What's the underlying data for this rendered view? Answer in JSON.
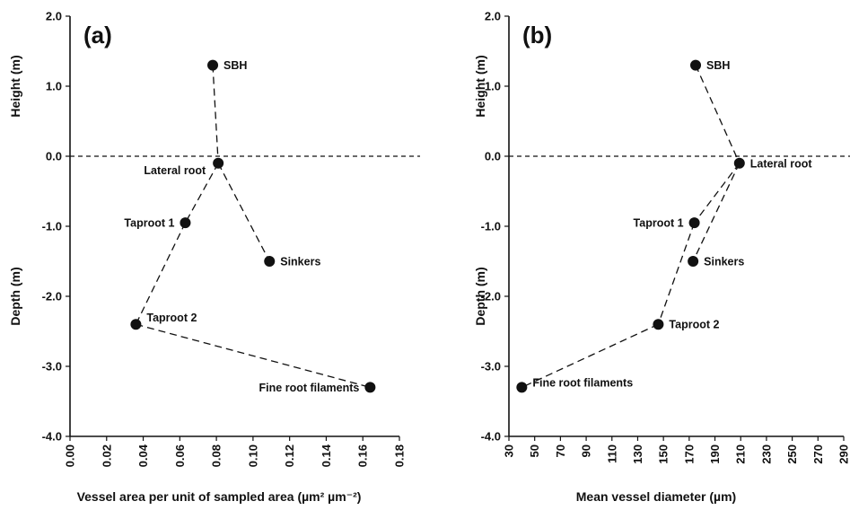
{
  "chart_data": [
    {
      "type": "scatter",
      "panel_label": "(a)",
      "xlabel": "Vessel area per unit of sampled area (µm² µm⁻²)",
      "ylabel_top": "Height (m)",
      "ylabel_bottom": "Depth (m)",
      "xlim": [
        0.0,
        0.18
      ],
      "ylim": [
        -4.0,
        2.0
      ],
      "xticks": [
        "0.00",
        "0.02",
        "0.04",
        "0.06",
        "0.08",
        "0.10",
        "0.12",
        "0.14",
        "0.16",
        "0.18"
      ],
      "yticks": [
        "2.0",
        "1.0",
        "0.0",
        "-1.0",
        "-2.0",
        "-3.0",
        "-4.0"
      ],
      "zero_line": true,
      "points": [
        {
          "label": "SBH",
          "x": 0.078,
          "y": 1.3,
          "label_side": "right"
        },
        {
          "label": "Lateral root",
          "x": 0.081,
          "y": -0.1,
          "label_side": "left"
        },
        {
          "label": "Taproot 1",
          "x": 0.063,
          "y": -0.95,
          "label_side": "left"
        },
        {
          "label": "Sinkers",
          "x": 0.109,
          "y": -1.5,
          "label_side": "right"
        },
        {
          "label": "Taproot 2",
          "x": 0.036,
          "y": -2.4,
          "label_side": "right"
        },
        {
          "label": "Fine root filaments",
          "x": 0.164,
          "y": -3.3,
          "label_side": "left"
        }
      ],
      "connections": [
        [
          "SBH",
          "Lateral root"
        ],
        [
          "Lateral root",
          "Taproot 1"
        ],
        [
          "Taproot 1",
          "Taproot 2"
        ],
        [
          "Taproot 2",
          "Fine root filaments"
        ],
        [
          "Lateral root",
          "Sinkers"
        ]
      ]
    },
    {
      "type": "scatter",
      "panel_label": "(b)",
      "xlabel": "Mean vessel diameter (µm)",
      "ylabel_top": "Height (m)",
      "ylabel_bottom": "Depth (m)",
      "xlim": [
        30,
        290
      ],
      "ylim": [
        -4.0,
        2.0
      ],
      "xticks": [
        "30",
        "50",
        "70",
        "90",
        "110",
        "130",
        "150",
        "170",
        "190",
        "210",
        "230",
        "250",
        "270",
        "290"
      ],
      "yticks": [
        "2.0",
        "1.0",
        "0.0",
        "-1.0",
        "-2.0",
        "-3.0",
        "-4.0"
      ],
      "zero_line": true,
      "points": [
        {
          "label": "SBH",
          "x": 175,
          "y": 1.3,
          "label_side": "right"
        },
        {
          "label": "Lateral root",
          "x": 209,
          "y": -0.1,
          "label_side": "right"
        },
        {
          "label": "Taproot 1",
          "x": 174,
          "y": -0.95,
          "label_side": "left"
        },
        {
          "label": "Sinkers",
          "x": 173,
          "y": -1.5,
          "label_side": "right"
        },
        {
          "label": "Taproot 2",
          "x": 146,
          "y": -2.4,
          "label_side": "right"
        },
        {
          "label": "Fine root filaments",
          "x": 40,
          "y": -3.3,
          "label_side": "right"
        }
      ],
      "connections": [
        [
          "SBH",
          "Lateral root"
        ],
        [
          "Lateral root",
          "Taproot 1"
        ],
        [
          "Lateral root",
          "Sinkers"
        ],
        [
          "Taproot 1",
          "Taproot 2"
        ],
        [
          "Taproot 2",
          "Fine root filaments"
        ]
      ]
    }
  ]
}
